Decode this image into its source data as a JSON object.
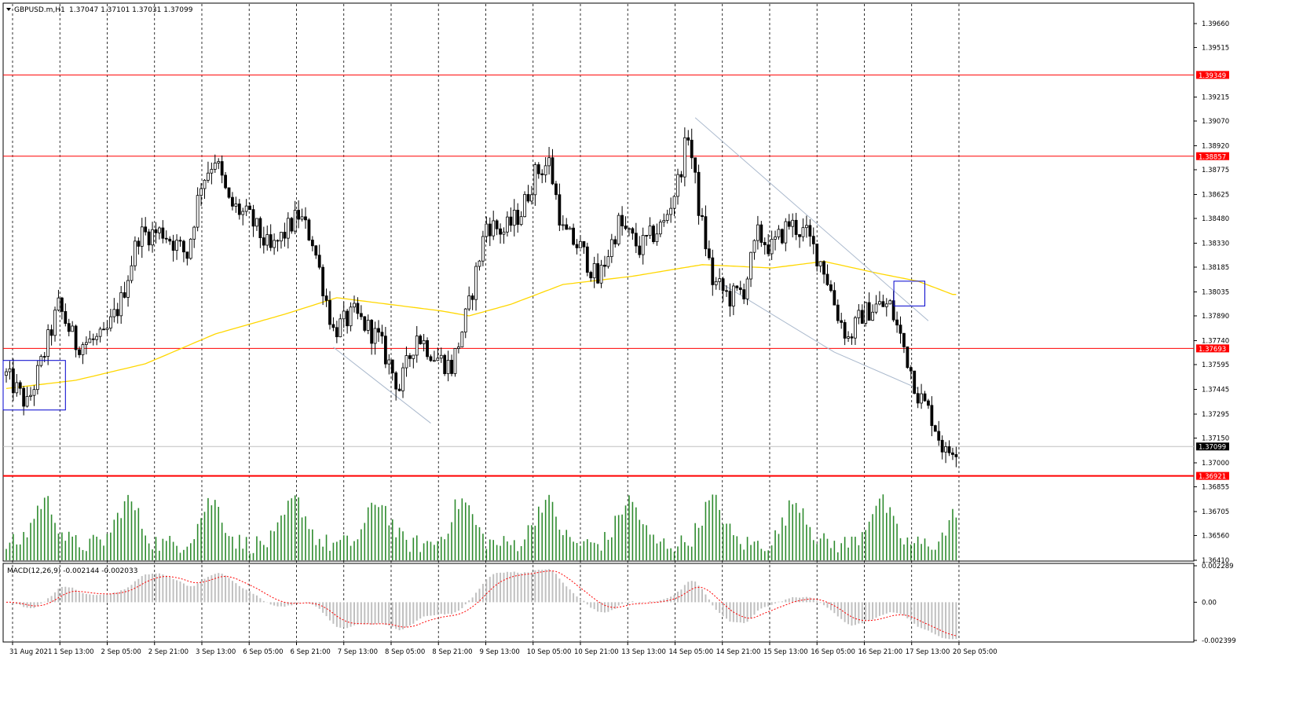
{
  "header": {
    "symbol": "GBPUSD.m,H1",
    "ohlc": "1.37047 1.37101 1.37031 1.37099"
  },
  "macd": {
    "label": "MACD(12,26,9) -0.002144 -0.002033",
    "ticks": [
      "0.002289",
      "0.00",
      "-0.002399"
    ]
  },
  "colors": {
    "bull": "#ffffff",
    "bear": "#000000",
    "level": "#ff0000",
    "ma": "#ffd700",
    "volume": "#2e8b2e",
    "macd_hist": "#c0c0c0",
    "macd_signal": "#ff0000",
    "box": "#0000cc",
    "trendline": "#a9b8cc"
  },
  "chart_data": {
    "type": "candlestick",
    "price_axis": {
      "ylim": [
        1.3641,
        1.3966
      ],
      "ticks": [
        "1.39660",
        "1.39515",
        "1.39215",
        "1.39070",
        "1.38920",
        "1.38775",
        "1.38625",
        "1.38480",
        "1.38330",
        "1.38185",
        "1.38035",
        "1.37890",
        "1.37740",
        "1.37595",
        "1.37445",
        "1.37295",
        "1.37150",
        "1.37000",
        "1.36855",
        "1.36705",
        "1.36560",
        "1.36410"
      ]
    },
    "horizontal_levels": [
      {
        "label": "1.39349",
        "value": 1.39349
      },
      {
        "label": "1.38857",
        "value": 1.38857
      },
      {
        "label": "1.37693",
        "value": 1.37693
      },
      {
        "label": "1.36921",
        "value": 1.36921
      }
    ],
    "current_price": {
      "label": "1.37099",
      "value": 1.37099
    },
    "x_labels": [
      "31 Aug 2021",
      "1 Sep 13:00",
      "2 Sep 05:00",
      "2 Sep 21:00",
      "3 Sep 13:00",
      "6 Sep 05:00",
      "6 Sep 21:00",
      "7 Sep 13:00",
      "8 Sep 05:00",
      "8 Sep 21:00",
      "9 Sep 13:00",
      "10 Sep 05:00",
      "10 Sep 21:00",
      "13 Sep 13:00",
      "14 Sep 05:00",
      "14 Sep 21:00",
      "15 Sep 13:00",
      "16 Sep 05:00",
      "16 Sep 21:00",
      "17 Sep 13:00",
      "20 Sep 05:00"
    ],
    "close_path": [
      {
        "i": 0,
        "p": 1.3753
      },
      {
        "i": 6,
        "p": 1.3735
      },
      {
        "i": 10,
        "p": 1.376
      },
      {
        "i": 15,
        "p": 1.3795
      },
      {
        "i": 20,
        "p": 1.3772
      },
      {
        "i": 28,
        "p": 1.3775
      },
      {
        "i": 33,
        "p": 1.3798
      },
      {
        "i": 38,
        "p": 1.3838
      },
      {
        "i": 45,
        "p": 1.384
      },
      {
        "i": 52,
        "p": 1.3826
      },
      {
        "i": 56,
        "p": 1.387
      },
      {
        "i": 60,
        "p": 1.3885
      },
      {
        "i": 64,
        "p": 1.3857
      },
      {
        "i": 70,
        "p": 1.3848
      },
      {
        "i": 76,
        "p": 1.3828
      },
      {
        "i": 84,
        "p": 1.385
      },
      {
        "i": 88,
        "p": 1.3835
      },
      {
        "i": 94,
        "p": 1.378
      },
      {
        "i": 100,
        "p": 1.379
      },
      {
        "i": 107,
        "p": 1.3775
      },
      {
        "i": 113,
        "p": 1.3745
      },
      {
        "i": 118,
        "p": 1.3778
      },
      {
        "i": 123,
        "p": 1.3765
      },
      {
        "i": 128,
        "p": 1.3758
      },
      {
        "i": 133,
        "p": 1.3795
      },
      {
        "i": 138,
        "p": 1.3845
      },
      {
        "i": 143,
        "p": 1.384
      },
      {
        "i": 148,
        "p": 1.3852
      },
      {
        "i": 152,
        "p": 1.3875
      },
      {
        "i": 156,
        "p": 1.3882
      },
      {
        "i": 160,
        "p": 1.384
      },
      {
        "i": 165,
        "p": 1.383
      },
      {
        "i": 170,
        "p": 1.381
      },
      {
        "i": 176,
        "p": 1.3845
      },
      {
        "i": 182,
        "p": 1.383
      },
      {
        "i": 189,
        "p": 1.3845
      },
      {
        "i": 193,
        "p": 1.387
      },
      {
        "i": 196,
        "p": 1.39
      },
      {
        "i": 199,
        "p": 1.3855
      },
      {
        "i": 203,
        "p": 1.381
      },
      {
        "i": 208,
        "p": 1.38
      },
      {
        "i": 212,
        "p": 1.3805
      },
      {
        "i": 216,
        "p": 1.3838
      },
      {
        "i": 220,
        "p": 1.383
      },
      {
        "i": 225,
        "p": 1.3845
      },
      {
        "i": 230,
        "p": 1.3838
      },
      {
        "i": 235,
        "p": 1.3818
      },
      {
        "i": 239,
        "p": 1.379
      },
      {
        "i": 242,
        "p": 1.3775
      },
      {
        "i": 246,
        "p": 1.379
      },
      {
        "i": 250,
        "p": 1.3795
      },
      {
        "i": 254,
        "p": 1.3795
      },
      {
        "i": 258,
        "p": 1.377
      },
      {
        "i": 262,
        "p": 1.3742
      },
      {
        "i": 266,
        "p": 1.3728
      },
      {
        "i": 270,
        "p": 1.3705
      },
      {
        "i": 272,
        "p": 1.371
      }
    ],
    "ma_path": [
      {
        "i": 0,
        "p": 1.3745
      },
      {
        "i": 20,
        "p": 1.375
      },
      {
        "i": 40,
        "p": 1.376
      },
      {
        "i": 60,
        "p": 1.3778
      },
      {
        "i": 80,
        "p": 1.379
      },
      {
        "i": 95,
        "p": 1.38
      },
      {
        "i": 110,
        "p": 1.3796
      },
      {
        "i": 125,
        "p": 1.3792
      },
      {
        "i": 133,
        "p": 1.3789
      },
      {
        "i": 145,
        "p": 1.3796
      },
      {
        "i": 160,
        "p": 1.3808
      },
      {
        "i": 180,
        "p": 1.3813
      },
      {
        "i": 200,
        "p": 1.382
      },
      {
        "i": 220,
        "p": 1.3818
      },
      {
        "i": 235,
        "p": 1.3822
      },
      {
        "i": 250,
        "p": 1.3815
      },
      {
        "i": 262,
        "p": 1.381
      },
      {
        "i": 272,
        "p": 1.3802
      }
    ],
    "boxes": [
      {
        "i0": 0,
        "i1": 17,
        "p0": 1.3762,
        "p1": 1.3732
      },
      {
        "i0": 256,
        "i1": 264,
        "p0": 1.381,
        "p1": 1.3795
      }
    ],
    "trendlines": [
      {
        "i0": 94,
        "p0": 1.377,
        "i1": 122,
        "p1": 1.3724
      },
      {
        "i0": 198,
        "p0": 1.3909,
        "i1": 265,
        "p1": 1.3786
      },
      {
        "i0": 206,
        "p0": 1.3808,
        "i1": 238,
        "p1": 1.3767
      },
      {
        "i0": 238,
        "p0": 1.3767,
        "i1": 262,
        "p1": 1.3745
      }
    ],
    "bar_count": 274
  }
}
